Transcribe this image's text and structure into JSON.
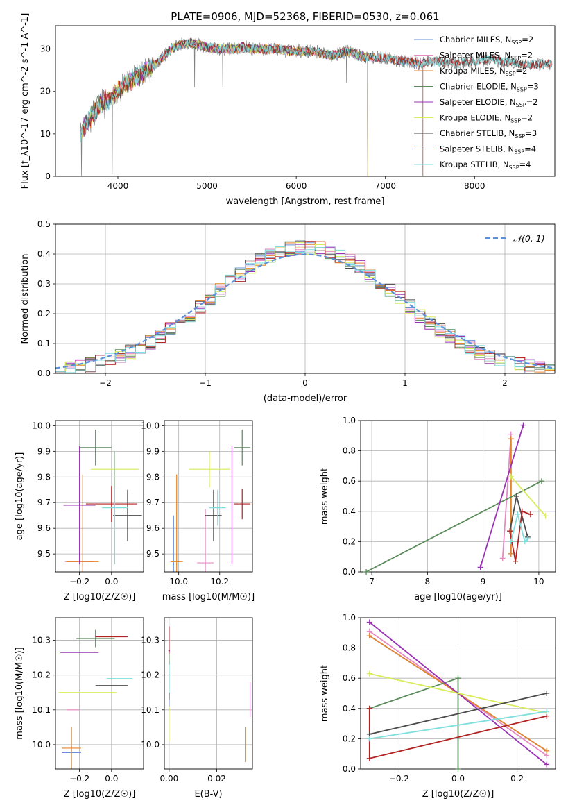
{
  "figure": {
    "title": "PLATE=0906, MJD=52368, FIBERID=0530, z=0.061"
  },
  "chart_data": [
    {
      "id": "spectrum",
      "type": "line",
      "xlabel": "wavelength [Angstrom, rest frame]",
      "ylabel": "Flux [f_λ10^-17 erg cm^-2 s^-1 A^-1]",
      "xlim": [
        3300,
        8900
      ],
      "ylim": [
        0,
        35.5
      ],
      "xticks": [
        4000,
        5000,
        6000,
        7000,
        8000
      ],
      "yticks": [
        0,
        10,
        20,
        30
      ],
      "grid": false,
      "legend_position": "top-right",
      "observed_color": "#808080",
      "anchor_x": [
        3580,
        3700,
        3800,
        3900,
        4000,
        4100,
        4250,
        4400,
        4500,
        4600,
        4700,
        4800,
        4900,
        5000,
        5100,
        5200,
        5300,
        5400,
        5500,
        5600,
        5700,
        5800,
        5900,
        6000,
        6100,
        6200,
        6300,
        6400,
        6500,
        6600,
        6700,
        6800,
        6900,
        7000,
        7100,
        7200,
        7300,
        7400,
        7500,
        7600,
        7700,
        7800,
        7900,
        8000,
        8100,
        8200,
        8300,
        8400,
        8500,
        8600,
        8700,
        8800,
        8870
      ],
      "anchor_y": [
        10,
        14,
        17,
        18,
        20,
        22,
        24,
        26,
        28,
        30,
        31,
        31.5,
        31,
        30.5,
        30,
        30,
        30,
        30.5,
        30,
        30,
        30,
        30,
        29.5,
        29.5,
        29.5,
        29.5,
        29,
        28.5,
        29,
        29.5,
        28.5,
        28,
        28,
        28,
        27.5,
        27,
        27,
        26.5,
        27,
        27,
        27,
        26.5,
        27,
        27,
        27.5,
        27.5,
        27,
        27,
        26.5,
        26.5,
        26.5,
        26.5,
        26.5
      ],
      "series": [
        {
          "name": "Chabrier MILES, N_SSP=2",
          "color": "#6b8fd6",
          "end": 7420
        },
        {
          "name": "Salpeter MILES, N_SSP=2",
          "color": "#e78ac3",
          "end": 7420
        },
        {
          "name": "Kroupa MILES, N_SSP=2",
          "color": "#e6842a",
          "end": 7420
        },
        {
          "name": "Chabrier ELODIE, N_SSP=3",
          "color": "#5a8a5a",
          "end": 6800
        },
        {
          "name": "Salpeter ELODIE, N_SSP=2",
          "color": "#9932b4",
          "end": 6800
        },
        {
          "name": "Kroupa ELODIE, N_SSP=2",
          "color": "#d8ec5a",
          "end": 6800
        },
        {
          "name": "Chabrier STELIB, N_SSP=3",
          "color": "#4a4a4a",
          "end": 8870
        },
        {
          "name": "Salpeter STELIB, N_SSP=4",
          "color": "#b22222",
          "end": 8870
        },
        {
          "name": "Kroupa STELIB, N_SSP=4",
          "color": "#7fdede",
          "end": 8870
        }
      ]
    },
    {
      "id": "residuals",
      "type": "histogram",
      "xlabel": "(data-model)/error",
      "ylabel": "Normed distribution",
      "xlim": [
        -2.5,
        2.5
      ],
      "ylim": [
        0,
        0.5
      ],
      "xticks": [
        -2,
        -1,
        0,
        1,
        2
      ],
      "yticks": [
        0.0,
        0.1,
        0.2,
        0.3,
        0.4,
        0.5
      ],
      "grid": true,
      "bin_width": 0.1,
      "reference_curve": {
        "name": "𝒩(0, 1)",
        "mean": 0,
        "sigma": 1,
        "color": "#5b8fd9",
        "style": "dashed"
      },
      "legend_position": "top-right"
    },
    {
      "id": "age_vs_Z",
      "type": "errorbar",
      "xlabel": "Z [log10(Z/Z☉)]",
      "ylabel": "age  [log10(age/yr)]",
      "xlim": [
        -0.35,
        0.2
      ],
      "ylim": [
        9.43,
        10.02
      ],
      "xticks": [
        -0.2,
        0.0
      ],
      "yticks": [
        9.5,
        9.6,
        9.7,
        9.8,
        9.9,
        10.0
      ],
      "grid": true,
      "points": [
        {
          "series": 0,
          "x": -0.2,
          "y": 9.47,
          "xerr": 0.08,
          "yerr": 0.0
        },
        {
          "series": 1,
          "x": -0.2,
          "y": 9.47,
          "xerr": 0.09,
          "yerr": 0.0
        },
        {
          "series": 2,
          "x": -0.18,
          "y": 9.47,
          "xerr": 0.1,
          "yerr": 0.34
        },
        {
          "series": 3,
          "x": -0.1,
          "y": 9.915,
          "xerr": 0.1,
          "yerr": 0.07
        },
        {
          "series": 4,
          "x": -0.2,
          "y": 9.69,
          "xerr": 0.1,
          "yerr": 0.23
        },
        {
          "series": 5,
          "x": 0.02,
          "y": 9.83,
          "xerr": 0.15,
          "yerr": 0.07
        },
        {
          "series": 6,
          "x": 0.1,
          "y": 9.65,
          "xerr": 0.09,
          "yerr": 0.1
        },
        {
          "series": 7,
          "x": 0.0,
          "y": 9.695,
          "xerr": 0.16,
          "yerr": 0.07
        },
        {
          "series": 8,
          "x": 0.02,
          "y": 9.68,
          "xerr": 0.08,
          "yerr": 0.22
        }
      ]
    },
    {
      "id": "age_vs_mass",
      "type": "errorbar",
      "xlabel": "mass [log10(M/M☉)]",
      "ylabel": "",
      "xlim": [
        9.93,
        10.36
      ],
      "ylim": [
        9.43,
        10.02
      ],
      "xticks": [
        10.0,
        10.2
      ],
      "yticks": [
        9.5,
        9.6,
        9.7,
        9.8,
        9.9,
        10.0
      ],
      "grid": true,
      "points": [
        {
          "series": 0,
          "x": 9.975,
          "y": 9.47,
          "xerr": 0.0,
          "yerr": 0.18
        },
        {
          "series": 1,
          "x": 10.13,
          "y": 9.465,
          "xerr": 0.04,
          "yerr": 0.21
        },
        {
          "series": 2,
          "x": 9.99,
          "y": 9.47,
          "xerr": 0.03,
          "yerr": 0.34
        },
        {
          "series": 3,
          "x": 10.31,
          "y": 9.915,
          "xerr": 0.04,
          "yerr": 0.07
        },
        {
          "series": 4,
          "x": 10.26,
          "y": 9.69,
          "xerr": 0.0,
          "yerr": 0.23
        },
        {
          "series": 5,
          "x": 10.15,
          "y": 9.83,
          "xerr": 0.1,
          "yerr": 0.07
        },
        {
          "series": 6,
          "x": 10.17,
          "y": 9.65,
          "xerr": 0.04,
          "yerr": 0.1
        },
        {
          "series": 7,
          "x": 10.31,
          "y": 9.695,
          "xerr": 0.04,
          "yerr": 0.06
        },
        {
          "series": 8,
          "x": 10.19,
          "y": 9.68,
          "xerr": 0.04,
          "yerr": 0.07
        }
      ]
    },
    {
      "id": "weight_vs_age",
      "type": "line",
      "xlabel": "age  [log10(age/yr)]",
      "ylabel": "mass weight",
      "xlim": [
        6.8,
        10.3
      ],
      "ylim": [
        0,
        1
      ],
      "xticks": [
        7,
        8,
        9,
        10
      ],
      "yticks": [
        0.0,
        0.2,
        0.4,
        0.6,
        0.8,
        1.0
      ],
      "grid": true,
      "lines": [
        {
          "series": 0,
          "x": [
            9.5,
            9.5
          ],
          "y": [
            0.12,
            0.88
          ]
        },
        {
          "series": 1,
          "x": [
            9.35,
            9.5
          ],
          "y": [
            0.09,
            0.91
          ]
        },
        {
          "series": 2,
          "x": [
            9.5,
            9.5
          ],
          "y": [
            0.12,
            0.88
          ]
        },
        {
          "series": 3,
          "x": [
            6.9,
            10.05
          ],
          "y": [
            0.0,
            0.6
          ]
        },
        {
          "series": 4,
          "x": [
            8.95,
            9.72
          ],
          "y": [
            0.03,
            0.97
          ]
        },
        {
          "series": 5,
          "x": [
            9.5,
            10.12
          ],
          "y": [
            0.63,
            0.37
          ]
        },
        {
          "series": 6,
          "x": [
            9.48,
            9.6,
            9.8
          ],
          "y": [
            0.27,
            0.5,
            0.23
          ]
        },
        {
          "series": 7,
          "x": [
            9.48,
            9.58,
            9.7,
            9.85
          ],
          "y": [
            0.27,
            0.07,
            0.4,
            0.38
          ]
        },
        {
          "series": 8,
          "x": [
            9.5,
            9.62,
            9.75,
            9.8
          ],
          "y": [
            0.2,
            0.38,
            0.2,
            0.22
          ]
        }
      ]
    },
    {
      "id": "mass_vs_Z",
      "type": "errorbar",
      "xlabel": "Z [log10(Z/Z☉)]",
      "ylabel": "mass [log10(M/M☉)]",
      "xlim": [
        -0.35,
        0.2
      ],
      "ylim": [
        9.93,
        10.365
      ],
      "xticks": [
        -0.2,
        0.0
      ],
      "yticks": [
        10.0,
        10.1,
        10.2,
        10.3
      ],
      "grid": true,
      "points": [
        {
          "series": 0,
          "x": -0.25,
          "y": 9.977,
          "xerr": 0.06,
          "yerr": 0.0
        },
        {
          "series": 1,
          "x": -0.24,
          "y": 10.1,
          "xerr": 0.04,
          "yerr": 0.0
        },
        {
          "series": 2,
          "x": -0.25,
          "y": 9.99,
          "xerr": 0.06,
          "yerr": 0.06
        },
        {
          "series": 3,
          "x": -0.1,
          "y": 10.305,
          "xerr": 0.12,
          "yerr": 0.025
        },
        {
          "series": 4,
          "x": -0.2,
          "y": 10.265,
          "xerr": 0.12,
          "yerr": 0.0
        },
        {
          "series": 5,
          "x": -0.15,
          "y": 10.15,
          "xerr": 0.18,
          "yerr": 0.0
        },
        {
          "series": 6,
          "x": 0.0,
          "y": 10.17,
          "xerr": 0.1,
          "yerr": 0.0
        },
        {
          "series": 7,
          "x": 0.0,
          "y": 10.31,
          "xerr": 0.1,
          "yerr": 0.0
        },
        {
          "series": 8,
          "x": 0.05,
          "y": 10.19,
          "xerr": 0.08,
          "yerr": 0.0
        }
      ]
    },
    {
      "id": "mass_vs_EBV",
      "type": "errorbar",
      "xlabel": "E(B-V)",
      "ylabel": "",
      "xlim": [
        -0.002,
        0.035
      ],
      "ylim": [
        9.93,
        10.365
      ],
      "xticks": [
        0.0,
        0.02
      ],
      "yticks": [
        10.0,
        10.1,
        10.2,
        10.3
      ],
      "grid": true,
      "points": [
        {
          "series": 0,
          "x": 0.0,
          "y": 10.17,
          "xerr": 0.0,
          "yerr": 0.07
        },
        {
          "series": 1,
          "x": 0.034,
          "y": 10.13,
          "xerr": 0.0,
          "yerr": 0.05
        },
        {
          "series": 2,
          "x": 0.032,
          "y": 10.0,
          "xerr": 0.0,
          "yerr": 0.05
        },
        {
          "series": 3,
          "x": 0.0,
          "y": 10.2,
          "xerr": 0.0,
          "yerr": 0.06
        },
        {
          "series": 4,
          "x": 0.0,
          "y": 10.27,
          "xerr": 0.0,
          "yerr": 0.0
        },
        {
          "series": 5,
          "x": 0.0,
          "y": 10.06,
          "xerr": 0.0,
          "yerr": 0.05
        },
        {
          "series": 6,
          "x": 0.0,
          "y": 10.17,
          "xerr": 0.0,
          "yerr": 0.04
        },
        {
          "series": 7,
          "x": 0.0,
          "y": 10.3,
          "xerr": 0.0,
          "yerr": 0.04
        },
        {
          "series": 8,
          "x": 0.0,
          "y": 10.19,
          "xerr": 0.0,
          "yerr": 0.04
        }
      ]
    },
    {
      "id": "weight_vs_Z",
      "type": "line",
      "xlabel": "Z [log10(Z/Z☉)]",
      "ylabel": "mass weight",
      "xlim": [
        -0.33,
        0.33
      ],
      "ylim": [
        0,
        1
      ],
      "xticks": [
        -0.2,
        0.0,
        0.2
      ],
      "yticks": [
        0.0,
        0.2,
        0.4,
        0.6,
        0.8,
        1.0
      ],
      "grid": true,
      "lines": [
        {
          "series": 0,
          "x": [
            -0.3,
            0.3
          ],
          "y": [
            0.88,
            0.12
          ]
        },
        {
          "series": 1,
          "x": [
            -0.3,
            0.3
          ],
          "y": [
            0.91,
            0.09
          ]
        },
        {
          "series": 2,
          "x": [
            -0.3,
            0.3
          ],
          "y": [
            0.88,
            0.12
          ]
        },
        {
          "series": 3,
          "x": [
            -0.3,
            0.0,
            0.0
          ],
          "y": [
            0.4,
            0.6,
            0.0
          ]
        },
        {
          "series": 4,
          "x": [
            -0.3,
            0.3
          ],
          "y": [
            0.97,
            0.03
          ]
        },
        {
          "series": 5,
          "x": [
            -0.3,
            0.3
          ],
          "y": [
            0.63,
            0.37
          ]
        },
        {
          "series": 6,
          "x": [
            -0.3,
            0.3
          ],
          "y": [
            0.23,
            0.5
          ]
        },
        {
          "series": 7,
          "x": [
            -0.3,
            -0.3,
            0.3
          ],
          "y": [
            0.4,
            0.07,
            0.35
          ]
        },
        {
          "series": 8,
          "x": [
            -0.3,
            0.3
          ],
          "y": [
            0.2,
            0.38
          ]
        }
      ]
    }
  ]
}
